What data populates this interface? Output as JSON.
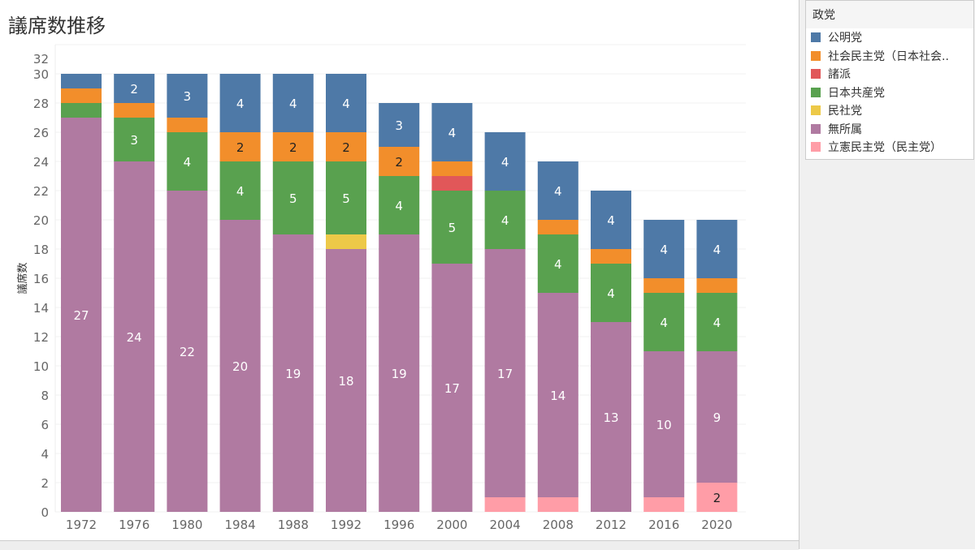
{
  "title": "議席数推移",
  "legend": {
    "title": "政党",
    "items": [
      {
        "name": "公明党",
        "color": "#4e79a7"
      },
      {
        "name": "社会民主党（日本社会..",
        "color": "#f28e2b"
      },
      {
        "name": "諸派",
        "color": "#e15759"
      },
      {
        "name": "日本共産党",
        "color": "#59a14f"
      },
      {
        "name": "民社党",
        "color": "#edc948"
      },
      {
        "name": "無所属",
        "color": "#b07aa1"
      },
      {
        "name": "立憲民主党（民主党）",
        "color": "#ff9da7"
      }
    ]
  },
  "chart_data": {
    "type": "bar",
    "stacked": true,
    "title": "議席数推移",
    "xlabel": "",
    "ylabel": "議席数",
    "ylim": [
      0,
      32
    ],
    "yticks": [
      0,
      2,
      4,
      6,
      8,
      10,
      12,
      14,
      16,
      18,
      20,
      22,
      24,
      26,
      28,
      30,
      32
    ],
    "categories": [
      "1972",
      "1976",
      "1980",
      "1984",
      "1988",
      "1992",
      "1996",
      "2000",
      "2004",
      "2008",
      "2012",
      "2016",
      "2020"
    ],
    "series": [
      {
        "name": "立憲民主党（民主党）",
        "color": "#ff9da7",
        "values": [
          0,
          0,
          0,
          0,
          0,
          0,
          0,
          0,
          1,
          1,
          0,
          1,
          2
        ]
      },
      {
        "name": "無所属",
        "color": "#b07aa1",
        "values": [
          27,
          24,
          22,
          20,
          19,
          18,
          19,
          17,
          17,
          14,
          13,
          10,
          9
        ]
      },
      {
        "name": "民社党",
        "color": "#edc948",
        "values": [
          0,
          0,
          0,
          0,
          0,
          1,
          0,
          0,
          0,
          0,
          0,
          0,
          0
        ]
      },
      {
        "name": "日本共産党",
        "color": "#59a14f",
        "values": [
          1,
          3,
          4,
          4,
          5,
          5,
          4,
          5,
          4,
          4,
          4,
          4,
          4
        ]
      },
      {
        "name": "諸派",
        "color": "#e15759",
        "values": [
          0,
          0,
          0,
          0,
          0,
          0,
          0,
          1,
          0,
          0,
          0,
          0,
          0
        ]
      },
      {
        "name": "社会民主党（日本社会..",
        "color": "#f28e2b",
        "values": [
          1,
          1,
          1,
          2,
          2,
          2,
          2,
          1,
          0,
          1,
          1,
          1,
          1
        ]
      },
      {
        "name": "公明党",
        "color": "#4e79a7",
        "values": [
          1,
          2,
          3,
          4,
          4,
          4,
          3,
          4,
          4,
          4,
          4,
          4,
          4
        ]
      }
    ],
    "legend": "right"
  }
}
